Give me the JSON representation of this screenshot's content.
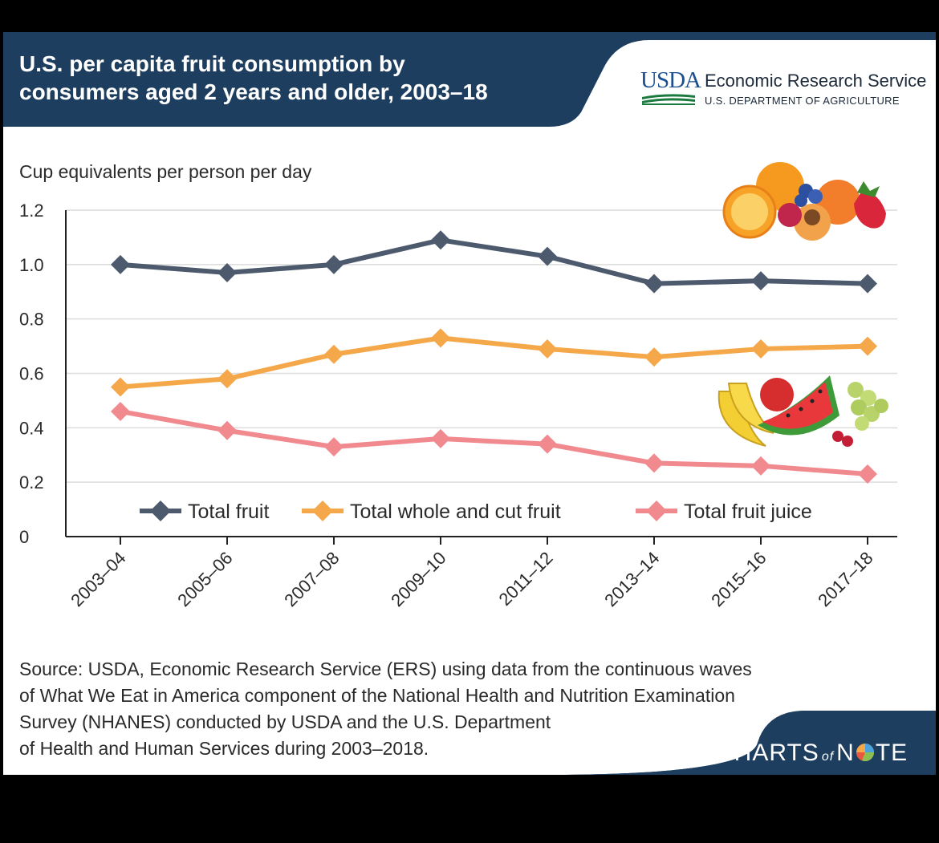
{
  "title_lines": [
    "U.S. per capita fruit consumption by",
    "consumers aged 2 years and older, 2003–18"
  ],
  "logo": {
    "usda": "USDA",
    "agency": "Economic Research Service",
    "department": "U.S. DEPARTMENT OF AGRICULTURE"
  },
  "colors": {
    "header": "#1d3e5e",
    "total_fruit": "#4d5a6e",
    "whole_cut": "#f5a84a",
    "juice": "#f18a8f",
    "grid": "#dcdcdc"
  },
  "chart_data": {
    "type": "line",
    "ylabel": "Cup equivalents per person per day",
    "ylim": [
      0,
      1.2
    ],
    "yticks": [
      "0",
      "0.2",
      "0.4",
      "0.6",
      "0.8",
      "1.0",
      "1.2"
    ],
    "categories": [
      "2003–04",
      "2005–06",
      "2007–08",
      "2009–10",
      "2011–12",
      "2013–14",
      "2015–16",
      "2017–18"
    ],
    "series": [
      {
        "name": "Total fruit",
        "values": [
          1.0,
          0.97,
          1.0,
          1.09,
          1.03,
          0.93,
          0.94,
          0.93
        ],
        "color": "#4d5a6e"
      },
      {
        "name": "Total whole and cut fruit",
        "values": [
          0.55,
          0.58,
          0.67,
          0.73,
          0.69,
          0.66,
          0.69,
          0.7
        ],
        "color": "#f5a84a"
      },
      {
        "name": "Total fruit juice",
        "values": [
          0.46,
          0.39,
          0.33,
          0.36,
          0.34,
          0.27,
          0.26,
          0.23
        ],
        "color": "#f18a8f"
      }
    ],
    "grid": true,
    "legend": "inside, bottom"
  },
  "illustrations": [
    "citrus-berries-illustration",
    "banana-watermelon-grapes-illustration"
  ],
  "source_lines": [
    "Source: USDA, Economic Research Service (ERS) using data from the continuous waves",
    "of What We Eat in America component of the National Health and Nutrition Examination",
    "Survey (NHANES) conducted by USDA and the U.S. Department",
    "of Health and Human Services during 2003–2018."
  ],
  "brand": {
    "charts": "CHARTS",
    "of": "of",
    "note_n": "N",
    "note_te": "TE"
  }
}
